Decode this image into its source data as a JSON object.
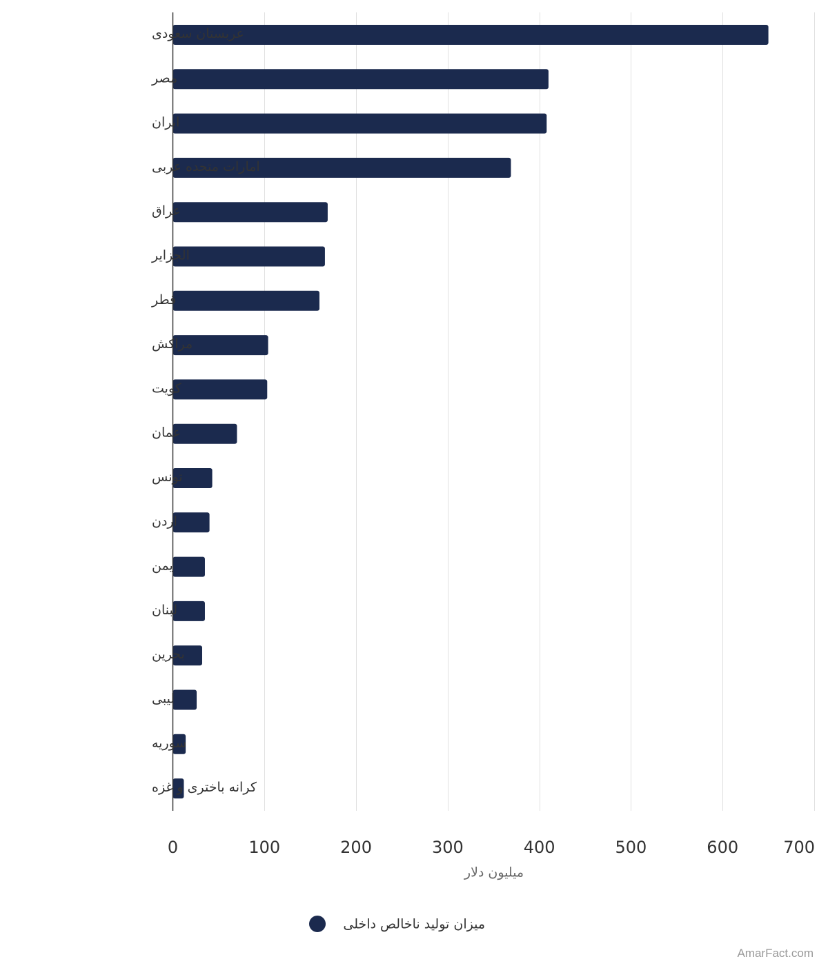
{
  "chart_data": {
    "type": "bar",
    "orientation": "horizontal",
    "categories": [
      "عربستان سعودی",
      "مصر",
      "ایران",
      "امارات متحده عربی",
      "عراق",
      "الجزایر",
      "قطر",
      "مراکش",
      "کویت",
      "عمان",
      "تونس",
      "اردن",
      "یمن",
      "لبنان",
      "بحرین",
      "لیبی",
      "سوریه",
      "کرانه باختری و غزه"
    ],
    "series": [
      {
        "name": "میزان تولید ناخالص داخلی",
        "values": [
          650,
          410,
          408,
          369,
          169,
          166,
          160,
          104,
          103,
          70,
          43,
          40,
          35,
          35,
          32,
          26,
          14,
          12
        ]
      }
    ],
    "xlim": [
      0,
      700
    ],
    "xticks": [
      "0",
      "100",
      "200",
      "300",
      "400",
      "500",
      "600",
      "700"
    ],
    "xlabel": "میلیون دلار",
    "ylabel": "",
    "title": "",
    "grid": true,
    "legend": "bottom-center"
  },
  "colors": {
    "bar": "#1b2a4e",
    "grid": "#e0e0e0",
    "axis": "#333333"
  },
  "watermark": "AmarFact.com"
}
